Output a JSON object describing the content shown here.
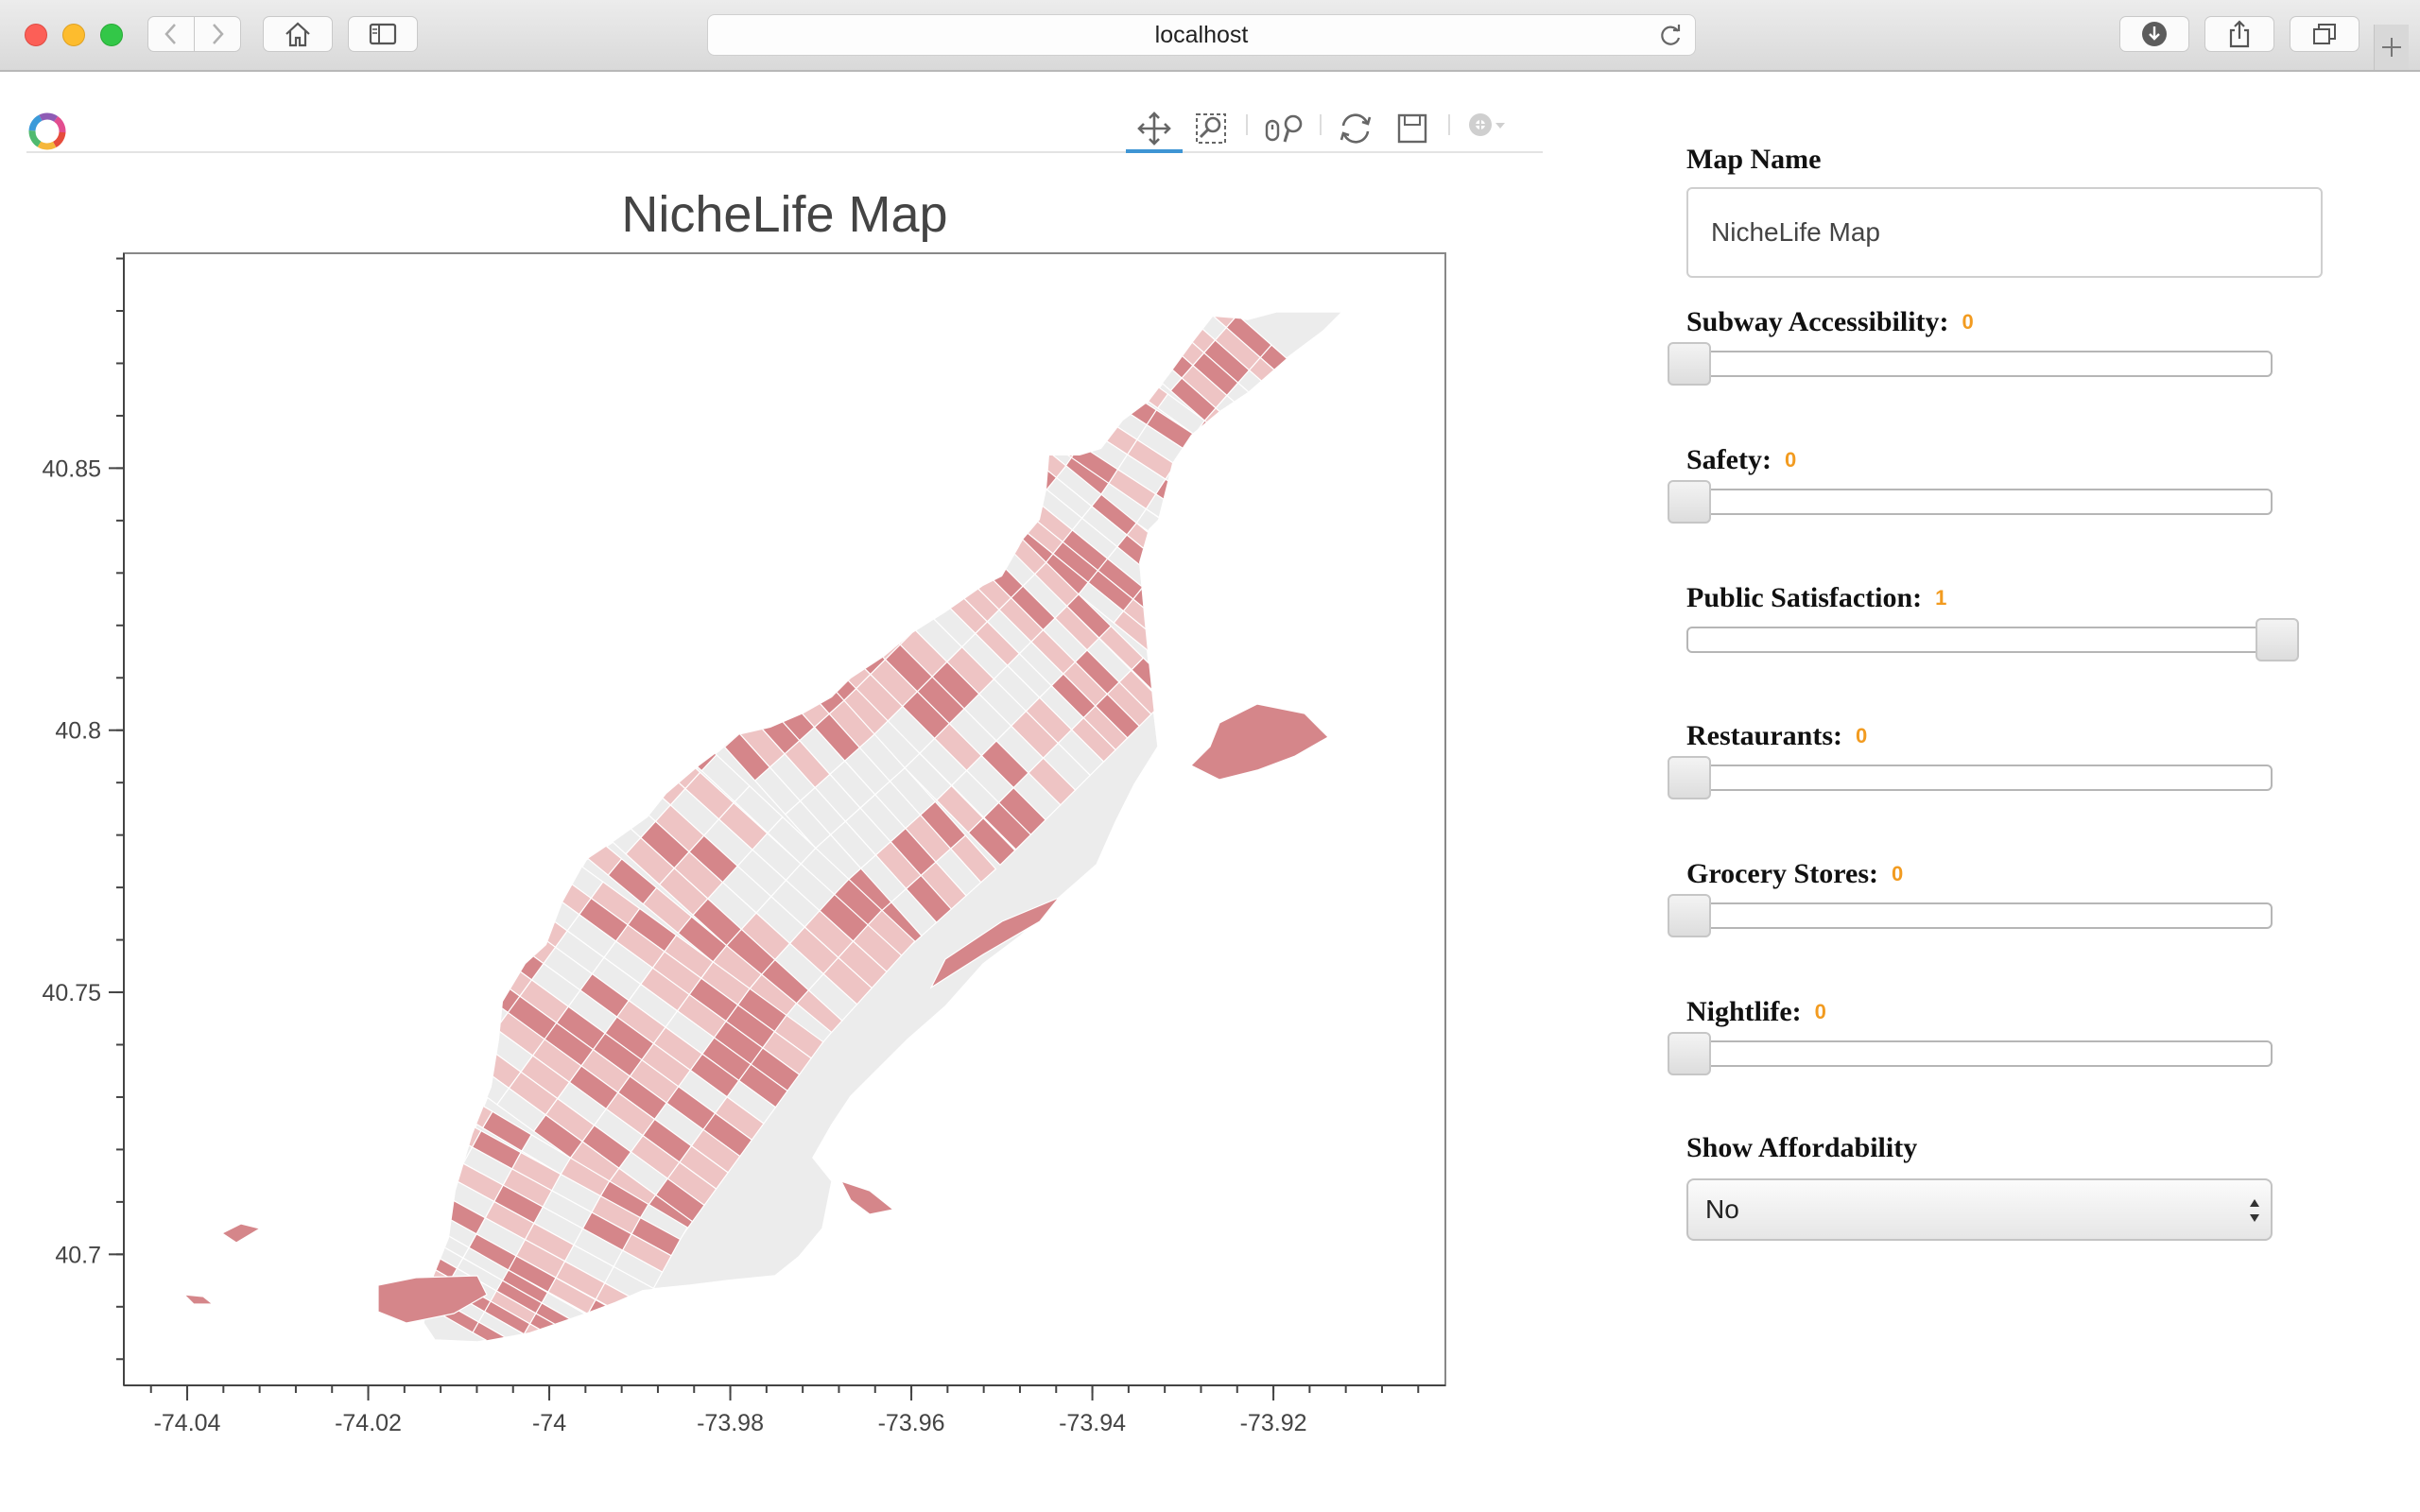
{
  "browser": {
    "url": "localhost"
  },
  "icons": {
    "back": "chevron-left-icon",
    "forward": "chevron-right-icon",
    "home": "home-icon",
    "sidebar": "sidebar-icon",
    "reload": "reload-icon",
    "download": "download-icon",
    "share": "share-icon",
    "tabs": "tabs-icon",
    "new_tab": "plus-icon",
    "logo": "bokeh-logo-icon",
    "pan": "pan-icon",
    "box_zoom": "box-zoom-icon",
    "wheel_zoom": "wheel-zoom-icon",
    "reset": "reset-icon",
    "save": "save-icon",
    "hover": "hover-icon"
  },
  "colors": {
    "dark_red": "#d5868a",
    "light_red": "#eec4c4",
    "gray": "#ececec",
    "slider_value": "#f29b20",
    "active_tool": "#3e95d4"
  },
  "chart_data": {
    "type": "choropleth",
    "title": "NicheLife Map",
    "xlabel": "",
    "ylabel": "",
    "xlim": [
      -74.047,
      -73.901
    ],
    "ylim": [
      40.675,
      40.891
    ],
    "x_ticks": [
      "-74.04",
      "-74.02",
      "-74",
      "-73.98",
      "-73.96",
      "-73.94",
      "-73.92"
    ],
    "x_tick_values": [
      -74.04,
      -74.02,
      -74.0,
      -73.98,
      -73.96,
      -73.94,
      -73.92
    ],
    "y_ticks": [
      "40.85",
      "40.8",
      "40.75",
      "40.7"
    ],
    "y_tick_values": [
      40.85,
      40.8,
      40.75,
      40.7
    ],
    "grid": false,
    "fill_classes": [
      "high",
      "medium",
      "low"
    ]
  },
  "controls": {
    "map_name": {
      "label": "Map Name",
      "value": "NicheLife Map"
    },
    "sliders": [
      {
        "label": "Subway Accessibility:",
        "value": "0",
        "fraction": 0
      },
      {
        "label": "Safety:",
        "value": "0",
        "fraction": 0
      },
      {
        "label": "Public Satisfaction:",
        "value": "1",
        "fraction": 1
      },
      {
        "label": "Restaurants:",
        "value": "0",
        "fraction": 0
      },
      {
        "label": "Grocery Stores:",
        "value": "0",
        "fraction": 0
      },
      {
        "label": "Nightlife:",
        "value": "0",
        "fraction": 0
      }
    ],
    "affordability": {
      "label": "Show Affordability",
      "selected": "No"
    }
  }
}
